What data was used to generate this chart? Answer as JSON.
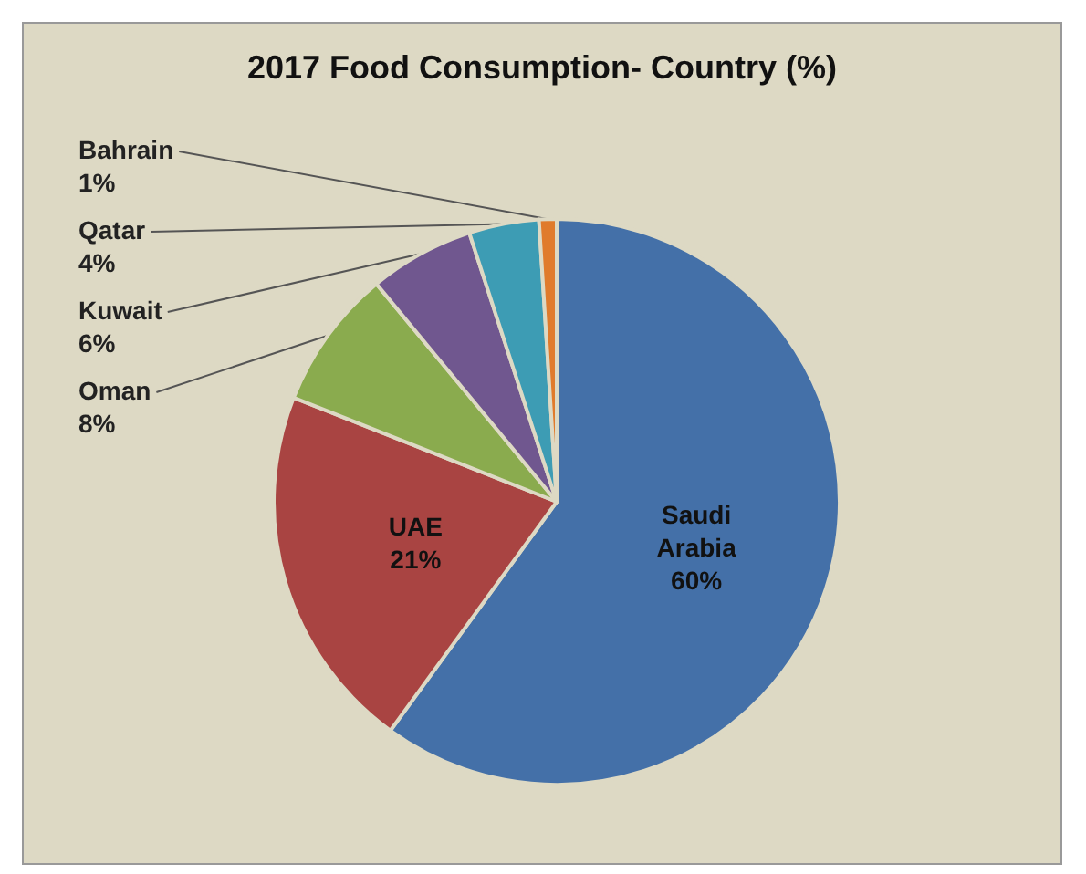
{
  "chart_data": {
    "type": "pie",
    "title": "2017 Food Consumption- Country (%)",
    "categories": [
      "Saudi Arabia",
      "UAE",
      "Oman",
      "Kuwait",
      "Qatar",
      "Bahrain"
    ],
    "values": [
      60,
      21,
      8,
      6,
      4,
      1
    ],
    "value_labels": [
      "60%",
      "21%",
      "8%",
      "6%",
      "4%",
      "1%"
    ],
    "colors": [
      "#4470a8",
      "#a94442",
      "#8aab4e",
      "#70578f",
      "#3d9cb4",
      "#e07b2c"
    ],
    "legend": false
  }
}
